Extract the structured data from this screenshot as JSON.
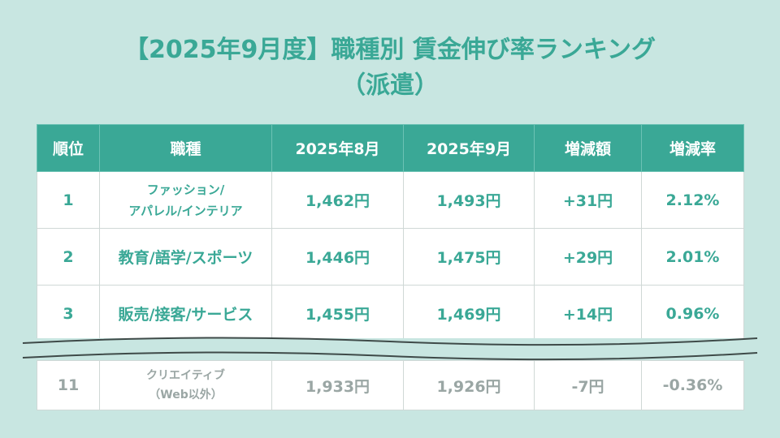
{
  "title": {
    "line1": "【2025年9月度】職種別 賃金伸び率ランキング",
    "line2": "（派遣）"
  },
  "table": {
    "headers": [
      "順位",
      "職種",
      "2025年8月",
      "2025年9月",
      "増減額",
      "増減率"
    ],
    "rows": [
      {
        "rank": "1",
        "job_line1": "ファッション/",
        "job_line2": "アパレル/インテリア",
        "aug": "1,462円",
        "sep": "1,493円",
        "diff": "+31円",
        "rate": "2.12%"
      },
      {
        "rank": "2",
        "job": "教育/語学/スポーツ",
        "aug": "1,446円",
        "sep": "1,475円",
        "diff": "+29円",
        "rate": "2.01%"
      },
      {
        "rank": "3",
        "job": "販売/接客/サービス",
        "aug": "1,455円",
        "sep": "1,469円",
        "diff": "+14円",
        "rate": "0.96%"
      }
    ],
    "last_row": {
      "rank": "11",
      "job_line1": "クリエイティブ",
      "job_line2": "（Web以外）",
      "aug": "1,933円",
      "sep": "1,926円",
      "diff": "-7円",
      "rate": "-0.36%"
    }
  },
  "colors": {
    "accent": "#3aa896",
    "background": "#c8e6e1",
    "faded_text": "#9aa6a4"
  }
}
